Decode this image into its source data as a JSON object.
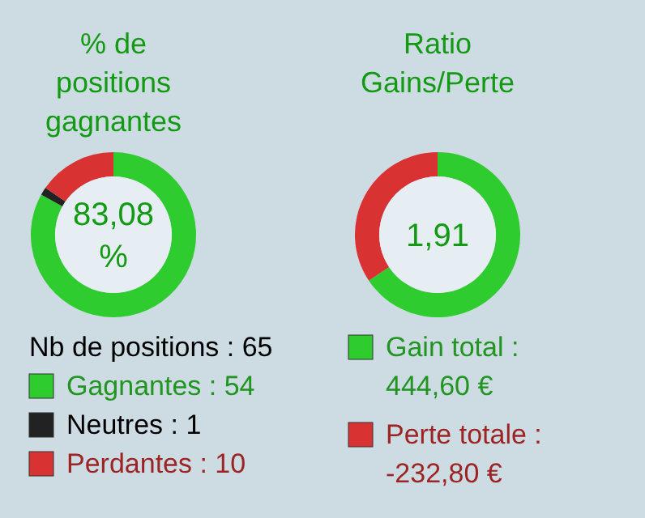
{
  "chart_data": [
    {
      "type": "donut",
      "title": "% de positions gagnantes",
      "categories": [
        "Gagnantes : 54",
        "Neutres : 1",
        "Perdantes : 10"
      ],
      "values": [
        54,
        1,
        10
      ],
      "colors": [
        "#2ecc2e",
        "#222222",
        "#d83232"
      ],
      "legend": "bottom",
      "annotations": [
        "83,08 %",
        "Nb de positions : 65"
      ]
    },
    {
      "type": "donut",
      "title": "Ratio Gains/Perte",
      "categories": [
        "Gain total : 444,60 €",
        "Perte totale : -232,80 €"
      ],
      "values": [
        65.63,
        34.37
      ],
      "colors": [
        "#2ecc2e",
        "#d83232"
      ],
      "legend": "bottom",
      "annotations": [
        "1,91"
      ]
    }
  ]
}
